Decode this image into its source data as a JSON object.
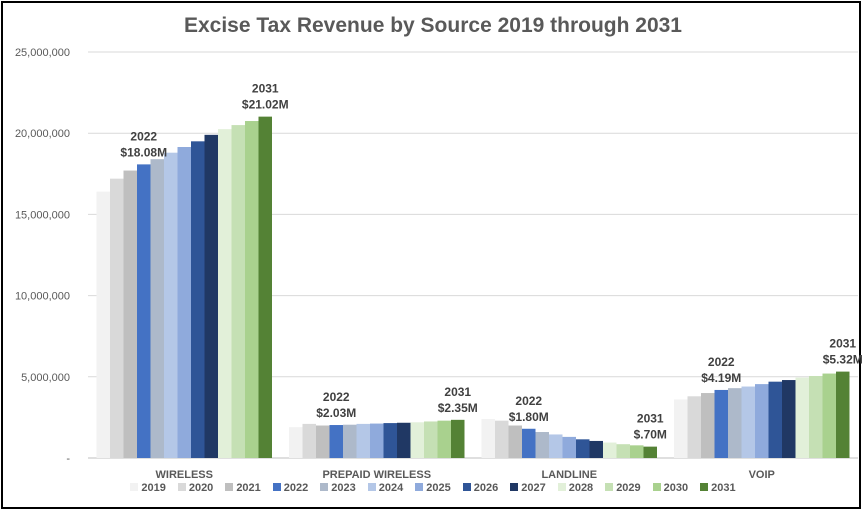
{
  "chart_data": {
    "type": "bar",
    "title": "Excise Tax Revenue by Source 2019 through 2031",
    "categories": [
      "WIRELESS",
      "PREPAID WIRELESS",
      "LANDLINE",
      "VOIP"
    ],
    "ylim": [
      0,
      25000000
    ],
    "yticks": [
      "-",
      "5,000,000",
      "10,000,000",
      "15,000,000",
      "20,000,000",
      "25,000,000"
    ],
    "grid": true,
    "legend_position": "bottom",
    "series": [
      {
        "name": "2019",
        "color": "#f2f2f2",
        "values": [
          16400000,
          1900000,
          2400000,
          3600000
        ]
      },
      {
        "name": "2020",
        "color": "#d9d9d9",
        "values": [
          17200000,
          2100000,
          2300000,
          3800000
        ]
      },
      {
        "name": "2021",
        "color": "#bfbfbf",
        "values": [
          17700000,
          2000000,
          2000000,
          4000000
        ]
      },
      {
        "name": "2022",
        "color": "#4472c4",
        "values": [
          18080000,
          2030000,
          1800000,
          4190000
        ]
      },
      {
        "name": "2023",
        "color": "#adb9ca",
        "values": [
          18400000,
          2050000,
          1600000,
          4300000
        ]
      },
      {
        "name": "2024",
        "color": "#b4c7e7",
        "values": [
          18800000,
          2100000,
          1450000,
          4400000
        ]
      },
      {
        "name": "2025",
        "color": "#8faadc",
        "values": [
          19150000,
          2120000,
          1300000,
          4550000
        ]
      },
      {
        "name": "2026",
        "color": "#2f5597",
        "values": [
          19500000,
          2150000,
          1150000,
          4700000
        ]
      },
      {
        "name": "2027",
        "color": "#203864",
        "values": [
          19900000,
          2170000,
          1050000,
          4800000
        ]
      },
      {
        "name": "2028",
        "color": "#e2f0d9",
        "values": [
          20250000,
          2200000,
          950000,
          4950000
        ]
      },
      {
        "name": "2029",
        "color": "#c5e0b4",
        "values": [
          20500000,
          2250000,
          850000,
          5050000
        ]
      },
      {
        "name": "2030",
        "color": "#a9d18e",
        "values": [
          20750000,
          2300000,
          780000,
          5200000
        ]
      },
      {
        "name": "2031",
        "color": "#548235",
        "values": [
          21020000,
          2350000,
          700000,
          5320000
        ]
      }
    ],
    "annotations": [
      {
        "category": "WIRELESS",
        "series": "2022",
        "year": "2022",
        "text": "$18.08M"
      },
      {
        "category": "WIRELESS",
        "series": "2031",
        "year": "2031",
        "text": "$21.02M"
      },
      {
        "category": "PREPAID WIRELESS",
        "series": "2022",
        "year": "2022",
        "text": "$2.03M"
      },
      {
        "category": "PREPAID WIRELESS",
        "series": "2031",
        "year": "2031",
        "text": "$2.35M"
      },
      {
        "category": "LANDLINE",
        "series": "2022",
        "year": "2022",
        "text": "$1.80M"
      },
      {
        "category": "LANDLINE",
        "series": "2031",
        "year": "2031",
        "text": "$.70M"
      },
      {
        "category": "VOIP",
        "series": "2022",
        "year": "2022",
        "text": "$4.19M"
      },
      {
        "category": "VOIP",
        "series": "2031",
        "year": "2031",
        "text": "$5.32M"
      }
    ]
  }
}
